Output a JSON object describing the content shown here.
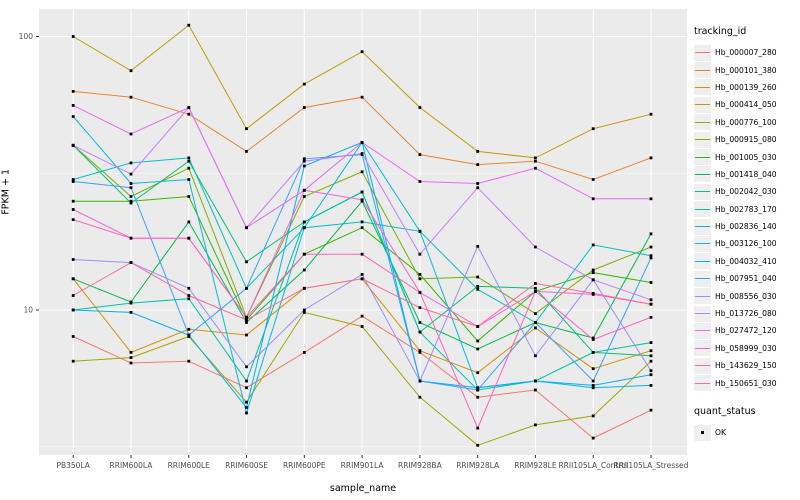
{
  "figure": {
    "background": "#FFFFFF",
    "panel_background": "#EBEBEB",
    "grid_color": "#FFFFFF",
    "tick_label_color": "#4D4D4D",
    "tick_mark_color": "#333333",
    "point_color": "#000000"
  },
  "axes": {
    "x_label": "sample_name",
    "y_label": "FPKM + 1",
    "y_tick_labels": [
      "100",
      "10"
    ]
  },
  "legend": {
    "color_legend_title": "tracking_id",
    "shape_legend_title": "quant_status",
    "shape_items": [
      {
        "label": "OK",
        "shape": "filled-square"
      }
    ]
  },
  "chart_data": {
    "type": "line",
    "title": "",
    "xlabel": "sample_name",
    "ylabel": "FPKM + 1",
    "y_scale": "log10",
    "ylim": [
      2.94,
      126
    ],
    "y_major_gridlines": [
      10,
      100
    ],
    "y_minor_gridlines": [
      3.162,
      31.62
    ],
    "y_tick_values": [
      100,
      10
    ],
    "grid": true,
    "legend_position": "right",
    "point_shape": "filled-square",
    "point_status_label": "OK",
    "categories": [
      "PB350LA",
      "RRIM600LA",
      "RRIM600LE",
      "RRIM600SE",
      "RRIM600PE",
      "RRIM901LA",
      "RRIM928BA",
      "RRIM928LA",
      "RRIM928LE",
      "RRII105LA_Control",
      "RRII105LA_Stressed"
    ],
    "series": [
      {
        "name": "Hb_000007_280",
        "color": "#F8766D",
        "values": [
          8.0,
          6.4,
          6.5,
          5.2,
          7.0,
          9.5,
          7.0,
          4.8,
          5.1,
          3.4,
          4.3
        ]
      },
      {
        "name": "Hb_000101_380",
        "color": "#EA8331",
        "values": [
          63,
          60,
          52,
          38,
          55,
          60,
          37,
          34,
          35,
          30,
          36
        ]
      },
      {
        "name": "Hb_000139_260",
        "color": "#D89000",
        "values": [
          13,
          7.0,
          8.5,
          8.1,
          12,
          13,
          7.1,
          5.9,
          8.6,
          6.1,
          7.1
        ]
      },
      {
        "name": "Hb_000414_050",
        "color": "#C09B00",
        "values": [
          100,
          75,
          110,
          46,
          67,
          88,
          55,
          38,
          36,
          46,
          52
        ]
      },
      {
        "name": "Hb_000776_100",
        "color": "#A3A500",
        "values": [
          6.5,
          6.7,
          8.0,
          4.6,
          9.8,
          8.7,
          4.8,
          3.2,
          3.8,
          4.1,
          6.5
        ]
      },
      {
        "name": "Hb_000915_080",
        "color": "#7CAE00",
        "values": [
          40,
          26,
          33,
          9.4,
          26,
          32,
          13.0,
          13.2,
          9.7,
          14,
          17
        ]
      },
      {
        "name": "Hb_001005_030",
        "color": "#39B600",
        "values": [
          25,
          25,
          26,
          9.2,
          16,
          20,
          13.5,
          7.7,
          11.7,
          13.7,
          12.6
        ]
      },
      {
        "name": "Hb_001418_040",
        "color": "#00BB4E",
        "values": [
          13,
          10.7,
          21,
          9.0,
          14,
          25,
          9.0,
          7.2,
          9.0,
          7.9,
          19
        ]
      },
      {
        "name": "Hb_002042_030",
        "color": "#00BF7D",
        "values": [
          40,
          24.6,
          35,
          15,
          21,
          27,
          8.3,
          12.2,
          12,
          7.0,
          6.8
        ]
      },
      {
        "name": "Hb_002783_170",
        "color": "#00C1A3",
        "values": [
          10,
          10.6,
          11,
          5.5,
          21,
          27,
          8.3,
          5.1,
          5.5,
          7.0,
          7.6
        ]
      },
      {
        "name": "Hb_002836_140",
        "color": "#00BFC4",
        "values": [
          30,
          34.5,
          36,
          12,
          20,
          21,
          19.4,
          11.9,
          9.0,
          17.3,
          15.8
        ]
      },
      {
        "name": "Hb_003126_100",
        "color": "#00BAE0",
        "values": [
          51,
          29,
          30,
          4.2,
          20,
          41,
          19.4,
          5.2,
          5.5,
          5.2,
          5.3
        ]
      },
      {
        "name": "Hb_004032_410",
        "color": "#00B0F6",
        "values": [
          10,
          9.8,
          8.1,
          4.4,
          33.6,
          41,
          5.5,
          5.2,
          5.5,
          5.3,
          5.8
        ]
      },
      {
        "name": "Hb_007951_040",
        "color": "#35A2FF",
        "values": [
          29.5,
          28,
          8.1,
          12,
          35.7,
          37,
          5.5,
          5.1,
          9.0,
          5.5,
          15.5
        ]
      },
      {
        "name": "Hb_008556_030",
        "color": "#9590FF",
        "values": [
          15.3,
          14.9,
          12,
          6.2,
          10,
          13.5,
          5.5,
          17.1,
          6.8,
          12.9,
          6.0
        ]
      },
      {
        "name": "Hb_013726_080",
        "color": "#C77CFF",
        "values": [
          40,
          31.4,
          55,
          20,
          35,
          37.3,
          16,
          28,
          17,
          12.9,
          10.9
        ]
      },
      {
        "name": "Hb_027472_120",
        "color": "#E76BF3",
        "values": [
          56,
          44,
          55,
          20,
          27.4,
          41,
          29.5,
          29,
          33,
          25.5,
          25.5
        ]
      },
      {
        "name": "Hb_058999_030",
        "color": "#FA62DB",
        "values": [
          23.3,
          18.3,
          18.3,
          9.4,
          27.4,
          25.3,
          11.6,
          8.7,
          11.7,
          11.4,
          10.5
        ]
      },
      {
        "name": "Hb_143629_150",
        "color": "#FF62BC",
        "values": [
          21.4,
          18.3,
          18.3,
          9.4,
          16,
          16,
          11.6,
          3.7,
          11.7,
          7.8,
          9.4
        ]
      },
      {
        "name": "Hb_150651_030",
        "color": "#FF6A98",
        "values": [
          11.3,
          14.9,
          11.3,
          9.2,
          12,
          13,
          10.2,
          8.7,
          12.5,
          11.5,
          10.5
        ]
      }
    ]
  }
}
